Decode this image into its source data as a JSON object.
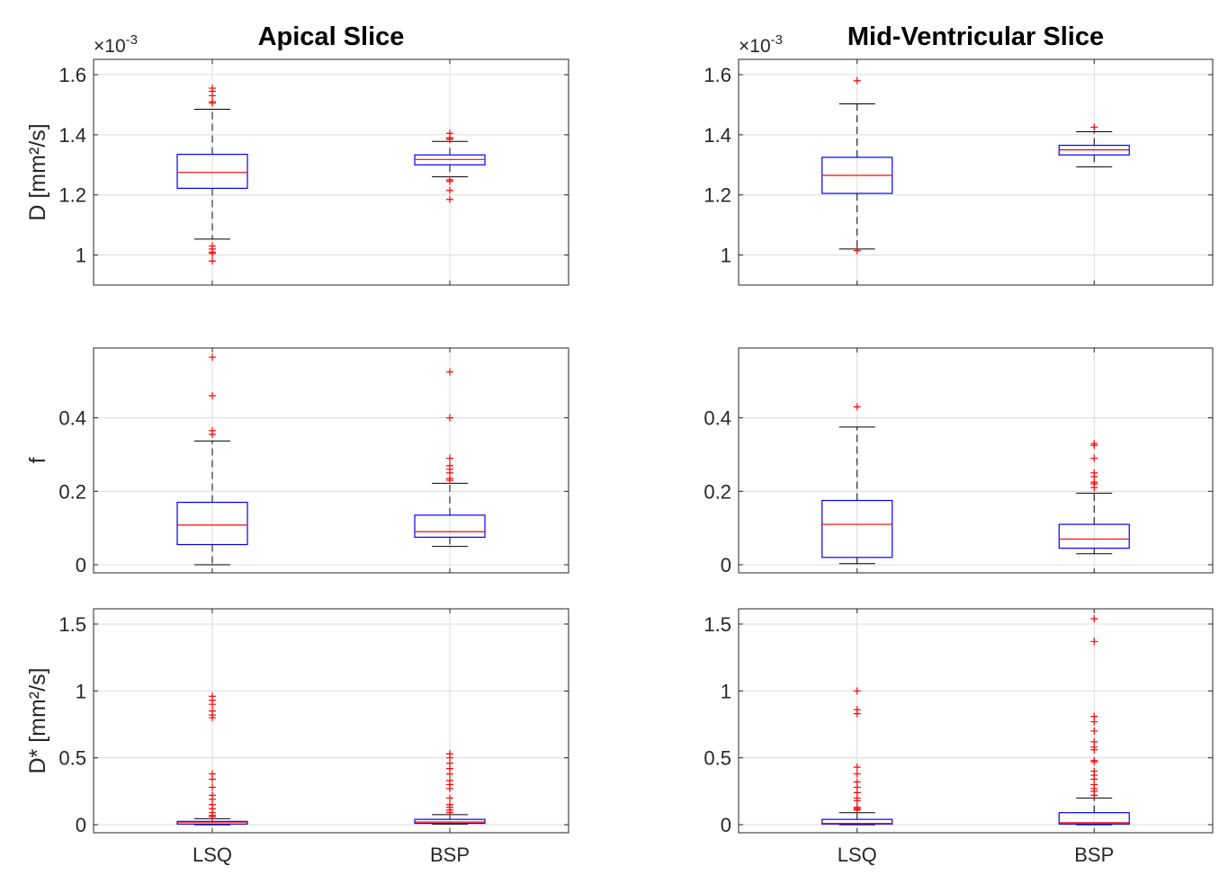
{
  "chart_data": {
    "type": "box",
    "column_titles": [
      "Apical Slice",
      "Mid-Ventricular Slice"
    ],
    "categories": [
      "LSQ",
      "BSP"
    ],
    "grid": true,
    "colors": {
      "box": "#0000ff",
      "median": "#ff0000",
      "whisker": "#000000",
      "outlier": "#ff0000",
      "grid": "#dcdcdc",
      "axis": "#262626"
    },
    "rows": [
      {
        "ylabel": "D [mm²/s]",
        "exponent": "×10",
        "exponent_power": "-3",
        "ylim": [
          0.9,
          1.651
        ],
        "yticks": [
          1,
          1.2,
          1.4,
          1.6
        ],
        "ytick_labels": [
          "1",
          "1.2",
          "1.4",
          "1.6"
        ]
      },
      {
        "ylabel": "f",
        "ylim": [
          -0.022,
          0.59
        ],
        "yticks": [
          0,
          0.2,
          0.4
        ],
        "ytick_labels": [
          "0",
          "0.2",
          "0.4"
        ]
      },
      {
        "ylabel": "D* [mm²/s]",
        "ylim": [
          -0.06,
          1.614
        ],
        "yticks": [
          0,
          0.5,
          1,
          1.5
        ],
        "ytick_labels": [
          "0",
          "0.5",
          "1",
          "1.5"
        ]
      }
    ],
    "panels": [
      {
        "column": 0,
        "row": 0,
        "boxes": [
          {
            "category": "LSQ",
            "whisker_low": 1.053,
            "q1": 1.222,
            "median": 1.275,
            "q3": 1.335,
            "whisker_high": 1.485,
            "outliers": [
              1.555,
              1.545,
              1.53,
              1.51,
              1.505,
              1.03,
              1.02,
              1.01,
              1.005,
              0.98
            ]
          },
          {
            "category": "BSP",
            "whisker_low": 1.26,
            "q1": 1.3,
            "median": 1.318,
            "q3": 1.333,
            "whisker_high": 1.378,
            "outliers": [
              1.405,
              1.39,
              1.385,
              1.25,
              1.245,
              1.215,
              1.185
            ]
          }
        ]
      },
      {
        "column": 1,
        "row": 0,
        "boxes": [
          {
            "category": "LSQ",
            "whisker_low": 1.02,
            "q1": 1.205,
            "median": 1.265,
            "q3": 1.325,
            "whisker_high": 1.503,
            "outliers": [
              1.58,
              1.015
            ]
          },
          {
            "category": "BSP",
            "whisker_low": 1.293,
            "q1": 1.333,
            "median": 1.35,
            "q3": 1.365,
            "whisker_high": 1.41,
            "outliers": [
              1.425
            ]
          }
        ]
      },
      {
        "column": 0,
        "row": 1,
        "boxes": [
          {
            "category": "LSQ",
            "whisker_low": 0.0,
            "q1": 0.055,
            "median": 0.108,
            "q3": 0.17,
            "whisker_high": 0.337,
            "outliers": [
              0.565,
              0.46,
              0.365,
              0.355
            ]
          },
          {
            "category": "BSP",
            "whisker_low": 0.05,
            "q1": 0.075,
            "median": 0.09,
            "q3": 0.135,
            "whisker_high": 0.222,
            "outliers": [
              0.525,
              0.4,
              0.29,
              0.27,
              0.26,
              0.25,
              0.235,
              0.23
            ]
          }
        ]
      },
      {
        "column": 1,
        "row": 1,
        "boxes": [
          {
            "category": "LSQ",
            "whisker_low": 0.003,
            "q1": 0.02,
            "median": 0.11,
            "q3": 0.175,
            "whisker_high": 0.375,
            "outliers": [
              0.43
            ]
          },
          {
            "category": "BSP",
            "whisker_low": 0.03,
            "q1": 0.045,
            "median": 0.07,
            "q3": 0.11,
            "whisker_high": 0.195,
            "outliers": [
              0.33,
              0.325,
              0.29,
              0.25,
              0.24,
              0.225,
              0.22,
              0.21
            ]
          }
        ]
      },
      {
        "column": 0,
        "row": 2,
        "boxes": [
          {
            "category": "LSQ",
            "whisker_low": 0.0,
            "q1": 0.005,
            "median": 0.02,
            "q3": 0.025,
            "whisker_high": 0.045,
            "outliers": [
              0.96,
              0.93,
              0.9,
              0.85,
              0.82,
              0.8,
              0.38,
              0.34,
              0.28,
              0.22,
              0.19,
              0.15,
              0.12,
              0.09,
              0.07,
              0.06
            ]
          },
          {
            "category": "BSP",
            "whisker_low": 0.005,
            "q1": 0.01,
            "median": 0.02,
            "q3": 0.04,
            "whisker_high": 0.075,
            "outliers": [
              0.53,
              0.5,
              0.46,
              0.42,
              0.38,
              0.33,
              0.3,
              0.27,
              0.2,
              0.15,
              0.13,
              0.11,
              0.09
            ]
          }
        ]
      },
      {
        "column": 1,
        "row": 2,
        "boxes": [
          {
            "category": "LSQ",
            "whisker_low": 0.0,
            "q1": 0.005,
            "median": 0.01,
            "q3": 0.04,
            "whisker_high": 0.09,
            "outliers": [
              1.0,
              0.86,
              0.83,
              0.43,
              0.38,
              0.32,
              0.28,
              0.24,
              0.2,
              0.18,
              0.13,
              0.12,
              0.11
            ]
          },
          {
            "category": "BSP",
            "whisker_low": 0.0,
            "q1": 0.005,
            "median": 0.015,
            "q3": 0.09,
            "whisker_high": 0.2,
            "outliers": [
              1.54,
              1.37,
              0.81,
              0.77,
              0.7,
              0.62,
              0.58,
              0.56,
              0.48,
              0.47,
              0.4,
              0.37,
              0.34,
              0.3,
              0.27,
              0.25,
              0.22
            ]
          }
        ]
      }
    ]
  }
}
